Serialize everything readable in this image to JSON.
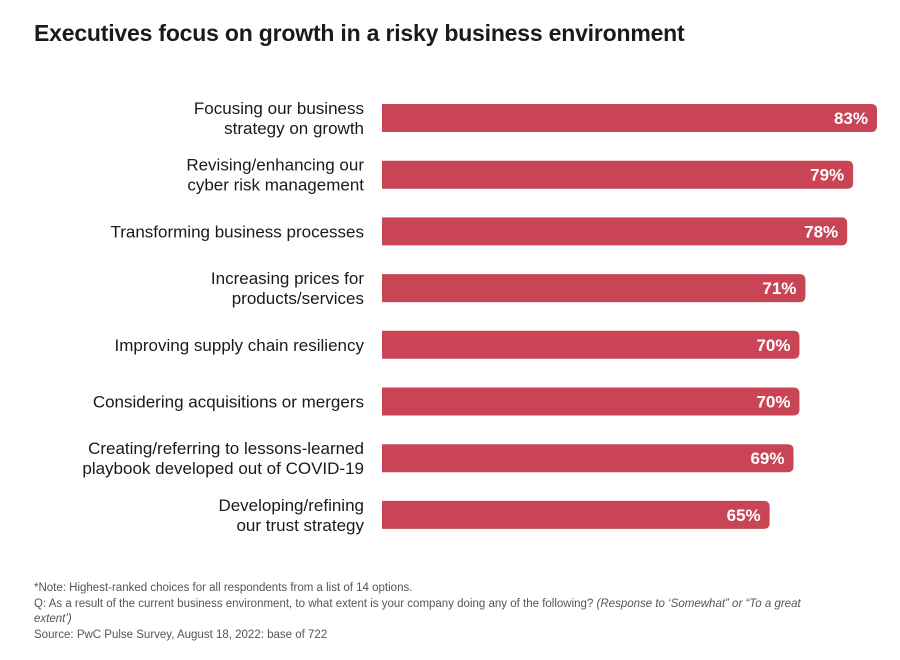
{
  "chart_data": {
    "type": "bar",
    "orientation": "horizontal",
    "title": "Executives focus on growth in a risky business environment",
    "categories": [
      [
        "Focusing our business",
        "strategy on growth"
      ],
      [
        "Revising/enhancing our",
        "cyber risk management"
      ],
      [
        "Transforming business processes"
      ],
      [
        "Increasing prices for",
        "products/services"
      ],
      [
        "Improving supply chain resiliency"
      ],
      [
        "Considering acquisitions or mergers"
      ],
      [
        "Creating/referring to lessons-learned",
        "playbook developed out of COVID-19"
      ],
      [
        "Developing/refining",
        "our trust strategy"
      ]
    ],
    "values": [
      83,
      79,
      78,
      71,
      70,
      70,
      69,
      65
    ],
    "data_labels": [
      "83%",
      "79%",
      "78%",
      "71%",
      "70%",
      "70%",
      "69%",
      "65%"
    ],
    "unit": "%",
    "xlim": [
      0,
      83
    ],
    "grid": false,
    "bar_color": "#c94556",
    "label_color": "#ffffff"
  },
  "notes": {
    "note": "*Note: Highest-ranked choices for all respondents from a list of 14 options.",
    "question": "Q: As a result of the current business environment, to what extent is your company doing any of the following?",
    "response": "(Response to ‘Somewhat” or “To a great extent’)",
    "source": "Source: PwC Pulse Survey, August 18, 2022: base of 722"
  }
}
